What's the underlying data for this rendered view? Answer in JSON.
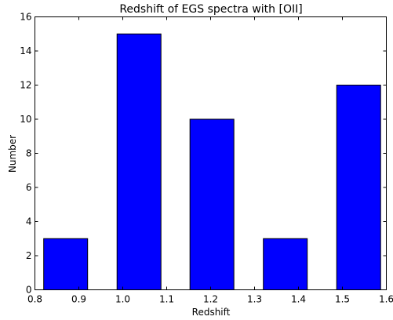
{
  "chart_data": {
    "type": "bar",
    "title": "Redshift of EGS spectra with [OII]",
    "xlabel": "Redshift",
    "ylabel": "Number",
    "xlim": [
      0.8,
      1.6
    ],
    "ylim": [
      0,
      16
    ],
    "bins": [
      {
        "x0": 0.82,
        "x1": 0.92,
        "value": 3
      },
      {
        "x0": 0.987,
        "x1": 1.087,
        "value": 15
      },
      {
        "x0": 1.153,
        "x1": 1.253,
        "value": 10
      },
      {
        "x0": 1.32,
        "x1": 1.42,
        "value": 3
      },
      {
        "x0": 1.487,
        "x1": 1.587,
        "value": 12
      }
    ],
    "xticks": [
      "0.8",
      "0.9",
      "1.0",
      "1.1",
      "1.2",
      "1.3",
      "1.4",
      "1.5",
      "1.6"
    ],
    "yticks": [
      "0",
      "2",
      "4",
      "6",
      "8",
      "10",
      "12",
      "14",
      "16"
    ],
    "bar_color": "#0000ff",
    "grid": false,
    "legend": "none"
  }
}
